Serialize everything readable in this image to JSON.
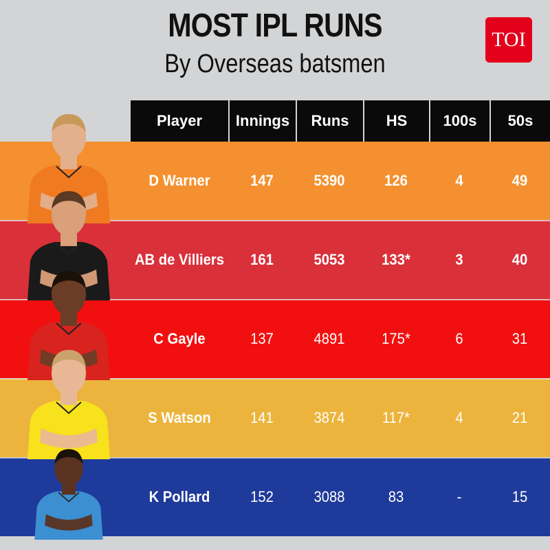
{
  "header": {
    "title": "MOST IPL RUNS",
    "subtitle": "By Overseas batsmen",
    "logo": "TOI"
  },
  "colors": {
    "background": "#d3d4d6",
    "header_bg": "#0a0a0a",
    "logo_bg": "#e4001b",
    "rows": [
      "#f4902f",
      "#d9303a",
      "#f20f0f",
      "#ecb43c",
      "#1e3a9a"
    ]
  },
  "chart_data": {
    "type": "table",
    "columns": [
      "Player",
      "Innings",
      "Runs",
      "HS",
      "100s",
      "50s"
    ],
    "rows": [
      {
        "player": "D Warner",
        "innings": "147",
        "runs": "5390",
        "hs": "126",
        "hundreds": "4",
        "fifties": "49",
        "bold": true
      },
      {
        "player": "AB de Villiers",
        "innings": "161",
        "runs": "5053",
        "hs": "133*",
        "hundreds": "3",
        "fifties": "40",
        "bold": true
      },
      {
        "player": "C Gayle",
        "innings": "137",
        "runs": "4891",
        "hs": "175*",
        "hundreds": "6",
        "fifties": "31",
        "bold": false
      },
      {
        "player": "S Watson",
        "innings": "141",
        "runs": "3874",
        "hs": "117*",
        "hundreds": "4",
        "fifties": "21",
        "bold": false
      },
      {
        "player": "K Pollard",
        "innings": "152",
        "runs": "3088",
        "hs": "83",
        "hundreds": "-",
        "fifties": "15",
        "bold": false
      }
    ]
  },
  "photos": [
    {
      "icon": "player-photo-icon",
      "jersey": "#f07a20",
      "skin": "#e2b08d",
      "hair": "#c79a5a"
    },
    {
      "icon": "player-photo-icon",
      "jersey": "#1a1a1a",
      "skin": "#d9a07a",
      "hair": "#5a3a22"
    },
    {
      "icon": "player-photo-icon",
      "jersey": "#d8231f",
      "skin": "#6b3d26",
      "hair": "#1a1108"
    },
    {
      "icon": "player-photo-icon",
      "jersey": "#f7e21b",
      "skin": "#e8b896",
      "hair": "#caa26a"
    },
    {
      "icon": "player-photo-icon",
      "jersey": "#3c8fd0",
      "skin": "#5a3320",
      "hair": "#1a1108"
    }
  ]
}
